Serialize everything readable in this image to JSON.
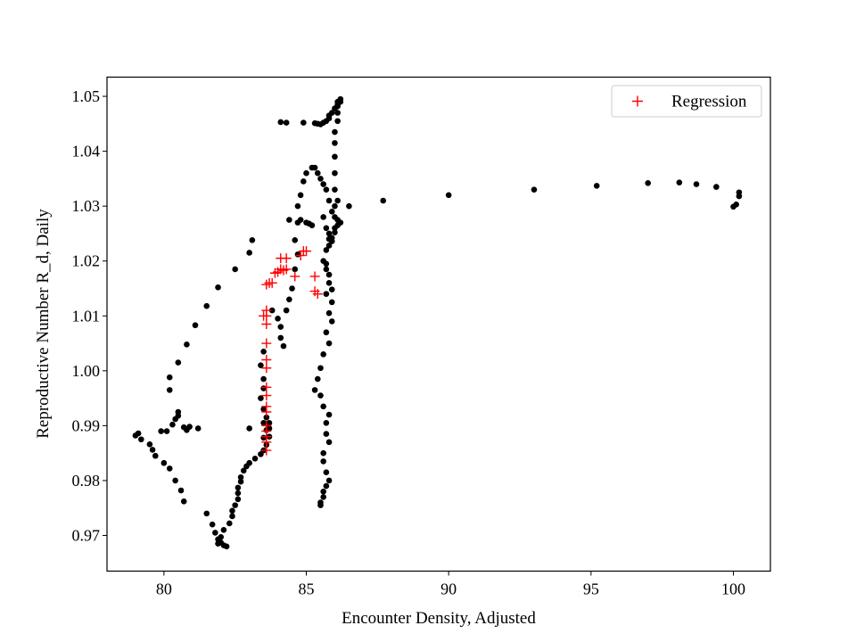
{
  "chart_data": {
    "type": "scatter",
    "title": "",
    "xlabel": "Encounter Density, Adjusted",
    "ylabel": "Reproductive Number R_d, Daily",
    "xlim": [
      78,
      101.3
    ],
    "ylim": [
      0.9635,
      1.0535
    ],
    "xticks": [
      80,
      85,
      90,
      95,
      100
    ],
    "xtick_labels": [
      "80",
      "85",
      "90",
      "95",
      "100"
    ],
    "yticks": [
      0.97,
      0.98,
      0.99,
      1.0,
      1.01,
      1.02,
      1.03,
      1.04,
      1.05
    ],
    "ytick_labels": [
      "0.97",
      "0.98",
      "0.99",
      "1.00",
      "1.01",
      "1.02",
      "1.03",
      "1.04",
      "1.05"
    ],
    "grid": false,
    "legend": {
      "placement": "top-right",
      "entries": [
        {
          "label": "Regression",
          "marker": "+",
          "color": "#ff0000"
        }
      ]
    },
    "series": [
      {
        "name": "Observed",
        "marker": "circle",
        "color": "#000000",
        "in_legend": false,
        "points": [
          [
            79.0,
            0.9882
          ],
          [
            79.1,
            0.9886
          ],
          [
            79.2,
            0.9875
          ],
          [
            79.5,
            0.9866
          ],
          [
            79.6,
            0.9856
          ],
          [
            79.7,
            0.9845
          ],
          [
            80.0,
            0.9832
          ],
          [
            80.2,
            0.9822
          ],
          [
            80.4,
            0.98
          ],
          [
            80.6,
            0.9782
          ],
          [
            80.7,
            0.9762
          ],
          [
            79.9,
            0.989
          ],
          [
            80.1,
            0.989
          ],
          [
            80.3,
            0.9902
          ],
          [
            80.4,
            0.9912
          ],
          [
            80.5,
            0.9918
          ],
          [
            80.5,
            0.9925
          ],
          [
            80.7,
            0.9897
          ],
          [
            80.8,
            0.9892
          ],
          [
            80.9,
            0.9898
          ],
          [
            81.2,
            0.9895
          ],
          [
            80.2,
            0.9965
          ],
          [
            80.2,
            0.9988
          ],
          [
            80.5,
            1.0015
          ],
          [
            80.8,
            1.0048
          ],
          [
            81.1,
            1.0083
          ],
          [
            81.5,
            1.0118
          ],
          [
            81.9,
            1.0152
          ],
          [
            82.5,
            1.0185
          ],
          [
            83.0,
            1.0215
          ],
          [
            83.1,
            1.0238
          ],
          [
            81.5,
            0.974
          ],
          [
            81.7,
            0.972
          ],
          [
            81.8,
            0.9705
          ],
          [
            81.9,
            0.9693
          ],
          [
            82.0,
            0.9687
          ],
          [
            82.1,
            0.9682
          ],
          [
            82.2,
            0.968
          ],
          [
            81.9,
            0.9685
          ],
          [
            82.0,
            0.9697
          ],
          [
            82.1,
            0.971
          ],
          [
            82.3,
            0.9722
          ],
          [
            82.4,
            0.9735
          ],
          [
            82.4,
            0.9745
          ],
          [
            82.5,
            0.9755
          ],
          [
            82.6,
            0.9766
          ],
          [
            82.6,
            0.9777
          ],
          [
            82.6,
            0.9787
          ],
          [
            82.7,
            0.9798
          ],
          [
            82.7,
            0.9806
          ],
          [
            82.8,
            0.9818
          ],
          [
            82.9,
            0.9826
          ],
          [
            83.0,
            0.9832
          ],
          [
            83.0,
            0.9895
          ],
          [
            83.2,
            0.984
          ],
          [
            83.4,
            0.9848
          ],
          [
            83.5,
            0.9855
          ],
          [
            83.6,
            0.9865
          ],
          [
            83.5,
            0.9878
          ],
          [
            83.6,
            0.9892
          ],
          [
            83.5,
            0.9905
          ],
          [
            83.6,
            0.9915
          ],
          [
            83.5,
            0.993
          ],
          [
            83.4,
            0.995
          ],
          [
            83.5,
            0.9968
          ],
          [
            83.5,
            0.9985
          ],
          [
            83.4,
            1.001
          ],
          [
            83.5,
            1.0035
          ],
          [
            83.7,
            0.988
          ],
          [
            83.7,
            0.9895
          ],
          [
            83.7,
            0.9905
          ],
          [
            83.8,
            1.011
          ],
          [
            84.0,
            1.0095
          ],
          [
            84.1,
            1.008
          ],
          [
            84.1,
            1.006
          ],
          [
            84.2,
            1.0045
          ],
          [
            84.3,
            1.011
          ],
          [
            84.4,
            1.013
          ],
          [
            84.5,
            1.015
          ],
          [
            84.6,
            1.0185
          ],
          [
            84.7,
            1.0212
          ],
          [
            84.6,
            1.0238
          ],
          [
            84.4,
            1.0275
          ],
          [
            84.7,
            1.027
          ],
          [
            84.8,
            1.0275
          ],
          [
            85.0,
            1.027
          ],
          [
            85.1,
            1.0268
          ],
          [
            85.2,
            1.0265
          ],
          [
            84.7,
            1.03
          ],
          [
            84.8,
            1.032
          ],
          [
            84.9,
            1.0345
          ],
          [
            85.0,
            1.036
          ],
          [
            85.2,
            1.037
          ],
          [
            85.3,
            1.037
          ],
          [
            85.4,
            1.036
          ],
          [
            85.5,
            1.035
          ],
          [
            85.6,
            1.034
          ],
          [
            85.7,
            1.033
          ],
          [
            85.8,
            1.031
          ],
          [
            85.9,
            1.029
          ],
          [
            86.0,
            1.028
          ],
          [
            86.1,
            1.0275
          ],
          [
            86.2,
            1.027
          ],
          [
            86.1,
            1.0265
          ],
          [
            86.0,
            1.026
          ],
          [
            85.6,
            1.028
          ],
          [
            85.7,
            1.026
          ],
          [
            85.8,
            1.025
          ],
          [
            85.8,
            1.024
          ],
          [
            85.7,
            1.022
          ],
          [
            85.6,
            1.02
          ],
          [
            85.8,
            1.0228
          ],
          [
            85.9,
            1.0242
          ],
          [
            86.0,
            1.0252
          ],
          [
            85.9,
            1.0236
          ],
          [
            86.0,
            1.03
          ],
          [
            86.1,
            1.031
          ],
          [
            86.0,
            1.033
          ],
          [
            86.0,
            1.036
          ],
          [
            86.0,
            1.039
          ],
          [
            86.0,
            1.0415
          ],
          [
            86.0,
            1.0435
          ],
          [
            86.1,
            1.0455
          ],
          [
            86.1,
            1.047
          ],
          [
            86.1,
            1.0482
          ],
          [
            86.1,
            1.049
          ],
          [
            86.2,
            1.0495
          ],
          [
            86.2,
            1.049
          ],
          [
            86.1,
            1.0485
          ],
          [
            86.0,
            1.0478
          ],
          [
            85.9,
            1.047
          ],
          [
            85.8,
            1.0465
          ],
          [
            85.8,
            1.046
          ],
          [
            85.7,
            1.0455
          ],
          [
            85.6,
            1.0452
          ],
          [
            85.5,
            1.0449
          ],
          [
            85.4,
            1.045
          ],
          [
            85.3,
            1.0451
          ],
          [
            84.9,
            1.0452
          ],
          [
            84.3,
            1.0452
          ],
          [
            84.1,
            1.0453
          ],
          [
            85.7,
            1.0195
          ],
          [
            85.7,
            1.0185
          ],
          [
            85.8,
            1.0175
          ],
          [
            85.8,
            1.016
          ],
          [
            85.9,
            1.0148
          ],
          [
            85.7,
            1.014
          ],
          [
            85.9,
            1.0125
          ],
          [
            85.8,
            1.0105
          ],
          [
            85.9,
            1.009
          ],
          [
            85.7,
            1.007
          ],
          [
            85.8,
            1.005
          ],
          [
            85.6,
            1.003
          ],
          [
            85.5,
            1.0005
          ],
          [
            85.4,
            0.9985
          ],
          [
            85.3,
            0.9965
          ],
          [
            85.5,
            0.9955
          ],
          [
            85.6,
            0.9935
          ],
          [
            85.8,
            0.992
          ],
          [
            85.7,
            0.9905
          ],
          [
            85.7,
            0.9885
          ],
          [
            85.8,
            0.987
          ],
          [
            85.6,
            0.985
          ],
          [
            85.6,
            0.9835
          ],
          [
            85.7,
            0.9815
          ],
          [
            85.8,
            0.98
          ],
          [
            85.7,
            0.979
          ],
          [
            85.6,
            0.978
          ],
          [
            85.6,
            0.977
          ],
          [
            85.5,
            0.976
          ],
          [
            85.5,
            0.9755
          ],
          [
            86.5,
            1.03
          ],
          [
            87.7,
            1.031
          ],
          [
            90.0,
            1.032
          ],
          [
            93.0,
            1.033
          ],
          [
            95.2,
            1.0337
          ],
          [
            97.0,
            1.0342
          ],
          [
            98.1,
            1.0343
          ],
          [
            98.7,
            1.034
          ],
          [
            99.4,
            1.0335
          ],
          [
            100.0,
            1.0299
          ],
          [
            100.1,
            1.0303
          ],
          [
            100.2,
            1.0318
          ],
          [
            100.2,
            1.0325
          ]
        ]
      },
      {
        "name": "Regression",
        "marker": "+",
        "color": "#ff0000",
        "in_legend": true,
        "points": [
          [
            83.6,
            0.9855
          ],
          [
            83.6,
            0.987
          ],
          [
            83.6,
            0.988
          ],
          [
            83.6,
            0.989
          ],
          [
            83.6,
            0.99
          ],
          [
            83.6,
            0.9925
          ],
          [
            83.6,
            0.9935
          ],
          [
            83.6,
            0.9955
          ],
          [
            83.6,
            0.997
          ],
          [
            83.6,
            1.0005
          ],
          [
            83.6,
            1.002
          ],
          [
            83.6,
            1.005
          ],
          [
            83.6,
            1.0085
          ],
          [
            83.6,
            1.01
          ],
          [
            83.6,
            1.011
          ],
          [
            83.6,
            1.0157
          ],
          [
            83.7,
            1.016
          ],
          [
            83.8,
            1.016
          ],
          [
            83.9,
            1.0178
          ],
          [
            84.0,
            1.018
          ],
          [
            84.1,
            1.0205
          ],
          [
            84.1,
            1.0185
          ],
          [
            84.2,
            1.0183
          ],
          [
            84.3,
            1.0205
          ],
          [
            84.3,
            1.0185
          ],
          [
            84.6,
            1.0172
          ],
          [
            84.8,
            1.021
          ],
          [
            84.9,
            1.0218
          ],
          [
            85.0,
            1.0218
          ],
          [
            85.3,
            1.0172
          ],
          [
            85.3,
            1.0145
          ],
          [
            85.4,
            1.014
          ],
          [
            83.5,
            1.01
          ]
        ]
      }
    ]
  }
}
